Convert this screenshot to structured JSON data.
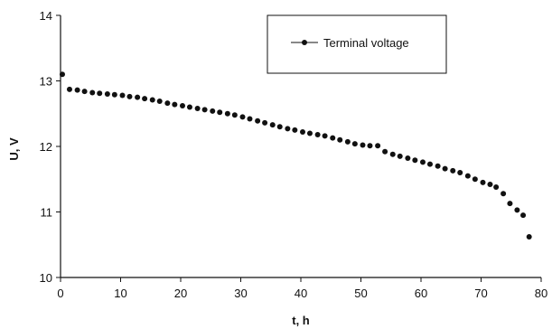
{
  "chart_data": {
    "type": "scatter",
    "title": "",
    "xlabel": "t, h",
    "ylabel": "U, V",
    "xlim": [
      0,
      80
    ],
    "ylim": [
      10,
      14
    ],
    "xticks": [
      "0",
      "10",
      "20",
      "30",
      "40",
      "50",
      "60",
      "70",
      "80"
    ],
    "yticks": [
      "10",
      "11",
      "12",
      "13",
      "14"
    ],
    "grid": false,
    "legend_position": "top-right",
    "series": [
      {
        "name": "Terminal voltage",
        "color": "#111111",
        "points": [
          [
            0.3,
            13.1
          ],
          [
            1.5,
            12.87
          ],
          [
            2.8,
            12.86
          ],
          [
            4.0,
            12.84
          ],
          [
            5.3,
            12.82
          ],
          [
            6.5,
            12.81
          ],
          [
            7.8,
            12.8
          ],
          [
            9.0,
            12.79
          ],
          [
            10.3,
            12.78
          ],
          [
            11.5,
            12.76
          ],
          [
            12.8,
            12.75
          ],
          [
            14.0,
            12.73
          ],
          [
            15.3,
            12.71
          ],
          [
            16.5,
            12.69
          ],
          [
            17.8,
            12.66
          ],
          [
            19.0,
            12.64
          ],
          [
            20.3,
            12.62
          ],
          [
            21.5,
            12.6
          ],
          [
            22.8,
            12.58
          ],
          [
            24.0,
            12.56
          ],
          [
            25.3,
            12.54
          ],
          [
            26.5,
            12.52
          ],
          [
            27.8,
            12.5
          ],
          [
            29.0,
            12.48
          ],
          [
            30.3,
            12.45
          ],
          [
            31.5,
            12.42
          ],
          [
            32.8,
            12.39
          ],
          [
            34.0,
            12.36
          ],
          [
            35.3,
            12.33
          ],
          [
            36.5,
            12.3
          ],
          [
            37.8,
            12.27
          ],
          [
            39.0,
            12.25
          ],
          [
            40.3,
            12.22
          ],
          [
            41.5,
            12.2
          ],
          [
            42.8,
            12.18
          ],
          [
            44.0,
            12.16
          ],
          [
            45.3,
            12.13
          ],
          [
            46.5,
            12.1
          ],
          [
            47.8,
            12.07
          ],
          [
            49.0,
            12.04
          ],
          [
            50.3,
            12.02
          ],
          [
            51.5,
            12.01
          ],
          [
            52.8,
            12.01
          ],
          [
            54.0,
            11.92
          ],
          [
            55.3,
            11.88
          ],
          [
            56.5,
            11.85
          ],
          [
            57.8,
            11.82
          ],
          [
            59.0,
            11.79
          ],
          [
            60.3,
            11.76
          ],
          [
            61.5,
            11.73
          ],
          [
            62.8,
            11.7
          ],
          [
            64.0,
            11.66
          ],
          [
            65.3,
            11.63
          ],
          [
            66.5,
            11.6
          ],
          [
            67.8,
            11.55
          ],
          [
            69.0,
            11.5
          ],
          [
            70.3,
            11.45
          ],
          [
            71.5,
            11.42
          ],
          [
            72.5,
            11.38
          ],
          [
            73.7,
            11.28
          ],
          [
            74.8,
            11.13
          ],
          [
            76.0,
            11.03
          ],
          [
            77.0,
            10.95
          ],
          [
            78.0,
            10.62
          ]
        ]
      }
    ]
  }
}
